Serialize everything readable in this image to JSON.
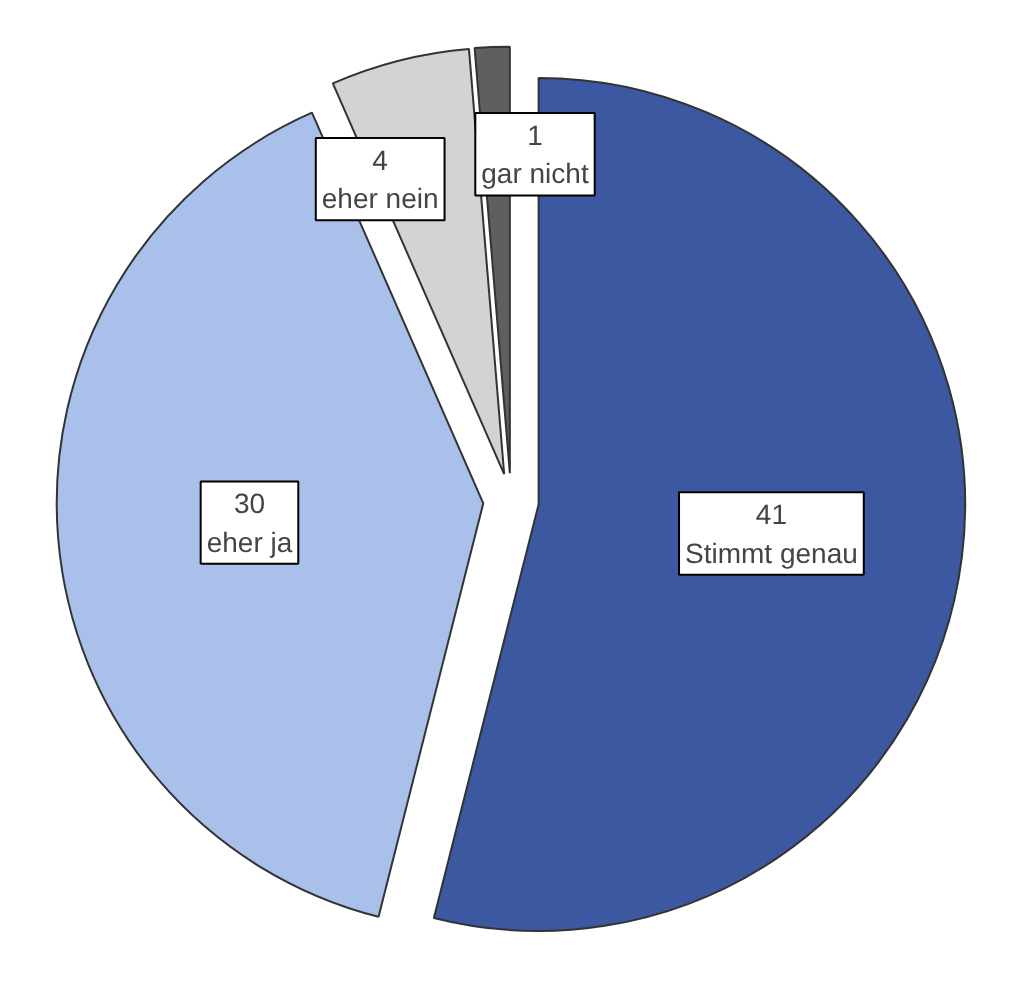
{
  "chart_data": {
    "type": "pie",
    "categories": [
      "Stimmt genau",
      "eher ja",
      "eher nein",
      "gar nicht"
    ],
    "values": [
      41,
      30,
      4,
      1
    ],
    "colors": [
      "#3c58a0",
      "#a9c1ea",
      "#d3d3d3",
      "#5f5f5f"
    ],
    "data_labels": true
  }
}
